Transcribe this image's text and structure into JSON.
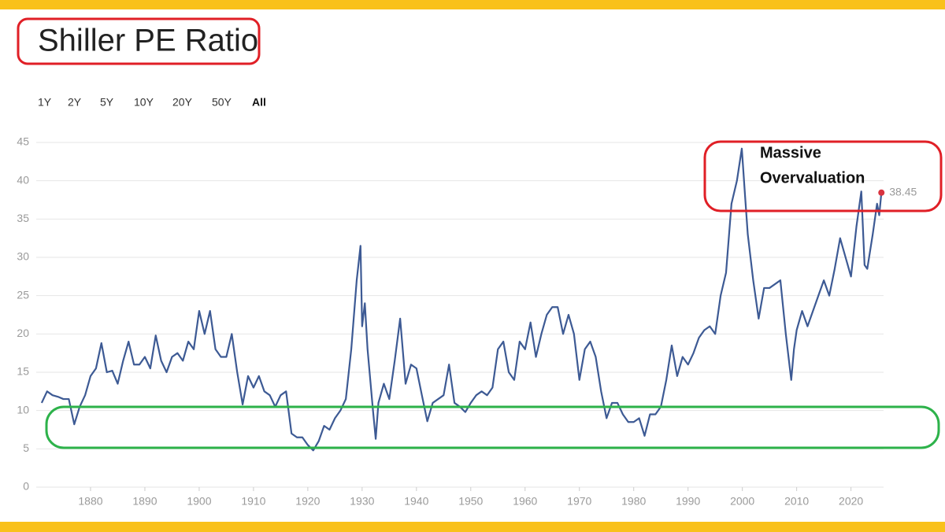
{
  "controls": {
    "range_buttons": [
      "1Y",
      "2Y",
      "5Y",
      "10Y",
      "20Y",
      "50Y",
      "All"
    ]
  },
  "chart_data": {
    "type": "line",
    "title": "Shiller PE Ratio",
    "annotation_lines": [
      "Massive",
      "Overvaluation"
    ],
    "color": "#3d5a94",
    "end_marker_color": "#d9333f",
    "grid": true,
    "xlim": [
      1870,
      2026
    ],
    "xticks": [
      1880,
      1890,
      1900,
      1910,
      1920,
      1930,
      1940,
      1950,
      1960,
      1970,
      1980,
      1990,
      2000,
      2010,
      2020
    ],
    "ylim": [
      0,
      45
    ],
    "yticks": [
      0,
      5,
      10,
      15,
      20,
      25,
      30,
      35,
      40,
      45
    ],
    "x": [
      1871,
      1872,
      1873,
      1874,
      1875,
      1876,
      1877,
      1878,
      1879,
      1880,
      1881,
      1882,
      1883,
      1884,
      1885,
      1886,
      1887,
      1888,
      1889,
      1890,
      1891,
      1892,
      1893,
      1894,
      1895,
      1896,
      1897,
      1898,
      1899,
      1900,
      1901,
      1902,
      1903,
      1904,
      1905,
      1906,
      1907,
      1908,
      1909,
      1910,
      1911,
      1912,
      1913,
      1914,
      1915,
      1916,
      1917,
      1918,
      1919,
      1920,
      1921,
      1922,
      1923,
      1924,
      1925,
      1926,
      1927,
      1928,
      1929,
      1929.7,
      1930,
      1930.5,
      1931,
      1932,
      1932.5,
      1933,
      1934,
      1935,
      1936,
      1937,
      1938,
      1939,
      1940,
      1941,
      1942,
      1943,
      1944,
      1945,
      1946,
      1947,
      1948,
      1949,
      1950,
      1951,
      1952,
      1953,
      1954,
      1955,
      1956,
      1957,
      1958,
      1959,
      1960,
      1961,
      1962,
      1963,
      1964,
      1965,
      1966,
      1967,
      1968,
      1969,
      1970,
      1971,
      1972,
      1973,
      1974,
      1975,
      1976,
      1977,
      1978,
      1979,
      1980,
      1981,
      1982,
      1983,
      1984,
      1985,
      1986,
      1987,
      1988,
      1989,
      1990,
      1991,
      1992,
      1993,
      1994,
      1995,
      1996,
      1997,
      1998,
      1999,
      1999.9,
      2000.5,
      2001,
      2002,
      2003,
      2004,
      2005,
      2006,
      2007,
      2008,
      2009,
      2009.5,
      2010,
      2011,
      2012,
      2013,
      2014,
      2015,
      2016,
      2017,
      2018,
      2019,
      2020,
      2021,
      2021.9,
      2022.5,
      2023,
      2024,
      2024.8,
      2025.2,
      2025.6
    ],
    "values": [
      11,
      12.5,
      12,
      11.8,
      11.5,
      11.5,
      8.2,
      10.5,
      12,
      14.5,
      15.5,
      18.8,
      15,
      15.2,
      13.5,
      16.5,
      19,
      16,
      16,
      17,
      15.5,
      19.8,
      16.5,
      15,
      17,
      17.5,
      16.5,
      19,
      18,
      23,
      20,
      23,
      18,
      17,
      17,
      20,
      15,
      10.8,
      14.5,
      13,
      14.5,
      12.5,
      12,
      10.5,
      12,
      12.5,
      7,
      6.5,
      6.5,
      5.5,
      4.8,
      6,
      8,
      7.5,
      9,
      10,
      11.5,
      18,
      27,
      31.5,
      21,
      24,
      18,
      10,
      6.3,
      11,
      13.5,
      11.5,
      16.5,
      22,
      13.5,
      16,
      15.5,
      12,
      8.6,
      11,
      11.5,
      12,
      16,
      11,
      10.5,
      9.8,
      11,
      12,
      12.5,
      12,
      13,
      18,
      19,
      15,
      14,
      19,
      18,
      21.5,
      17,
      20,
      22.5,
      23.5,
      23.5,
      20,
      22.5,
      20,
      14,
      18,
      19,
      17,
      12.5,
      9,
      11,
      11,
      9.5,
      8.5,
      8.5,
      9,
      6.7,
      9.5,
      9.5,
      10.5,
      14,
      18.5,
      14.5,
      17,
      16,
      17.5,
      19.5,
      20.5,
      21,
      20,
      25,
      28,
      37,
      40,
      44.2,
      38,
      33,
      27,
      22,
      26,
      26,
      26.5,
      27,
      20,
      14,
      18,
      20.5,
      23,
      21,
      23,
      25,
      27,
      25,
      28.5,
      32.5,
      30,
      27.5,
      34,
      38.6,
      29,
      28.5,
      33,
      37,
      35.5,
      38.45
    ]
  }
}
